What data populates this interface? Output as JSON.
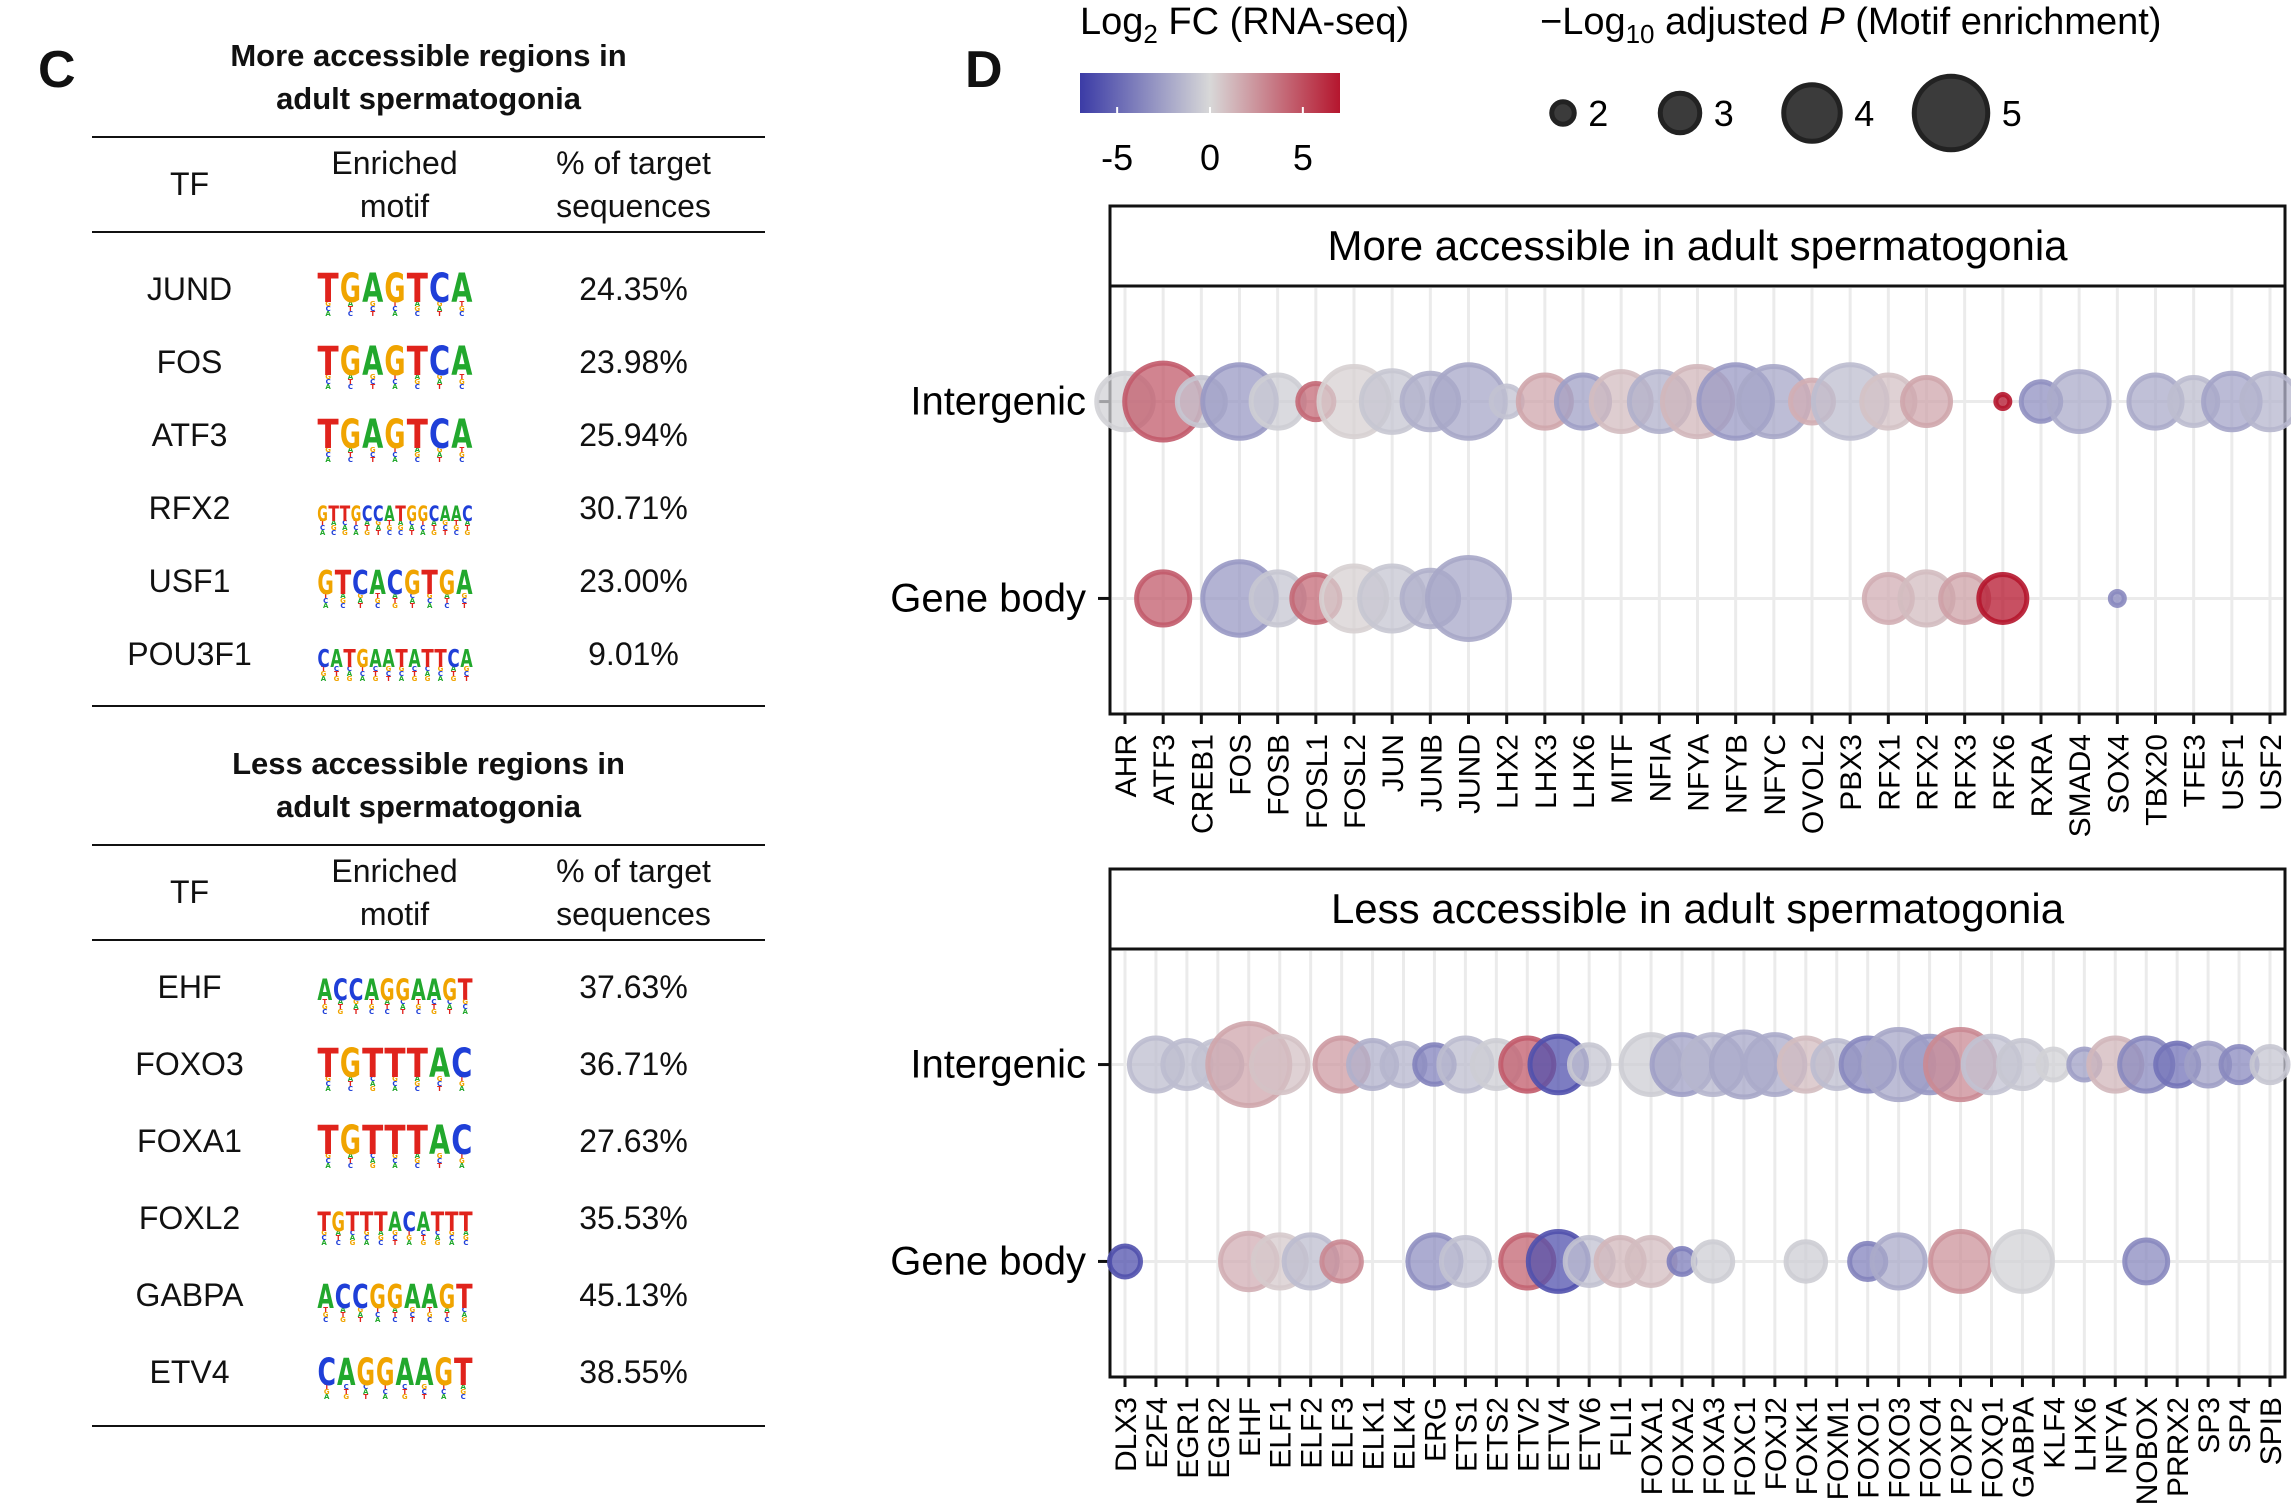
{
  "panel_c": {
    "letter": "C",
    "headers": {
      "tf": "TF",
      "motif_line1": "Enriched",
      "motif_line2": "motif",
      "pct_line1": "% of target",
      "pct_line2": "sequences"
    },
    "more": {
      "title_line1": "More accessible regions in",
      "title_line2": "adult spermatogonia",
      "rows": [
        {
          "tf": "JUND",
          "motif": "TGAGTCA",
          "pct": "24.35%"
        },
        {
          "tf": "FOS",
          "motif": "TGAGTCA",
          "pct": "23.98%"
        },
        {
          "tf": "ATF3",
          "motif": "TGAGTCA",
          "pct": "25.94%"
        },
        {
          "tf": "RFX2",
          "motif": "GTTGCCATGGCAAC",
          "pct": "30.71%"
        },
        {
          "tf": "USF1",
          "motif": "GTCACGTGA",
          "pct": "23.00%"
        },
        {
          "tf": "POU3F1",
          "motif": "CATGAATATTCA",
          "pct": "9.01%"
        }
      ]
    },
    "less": {
      "title_line1": "Less accessible regions in",
      "title_line2": "adult spermatogonia",
      "rows": [
        {
          "tf": "EHF",
          "motif": "ACCAGGAAGT",
          "pct": "37.63%"
        },
        {
          "tf": "FOXO3",
          "motif": "TGTTTAC",
          "pct": "36.71%"
        },
        {
          "tf": "FOXA1",
          "motif": "TGTTTAC",
          "pct": "27.63%"
        },
        {
          "tf": "FOXL2",
          "motif": "TGTTTACATTT",
          "pct": "35.53%"
        },
        {
          "tf": "GABPA",
          "motif": "ACCGGAAGT",
          "pct": "45.13%"
        },
        {
          "tf": "ETV4",
          "motif": "CAGGAAGT",
          "pct": "38.55%"
        }
      ]
    }
  },
  "panel_d": {
    "letter": "D",
    "colorbar": {
      "title_main": "Log",
      "title_sub": "2",
      "title_rest": " FC (RNA-seq)",
      "ticks": [
        -5,
        0,
        5
      ],
      "range": [
        -7,
        7
      ],
      "low_color": "#3b3ba6",
      "mid_color": "#d8d8d8",
      "high_color": "#b5162e"
    },
    "size_legend": {
      "title_prefix": "−Log",
      "title_sub": "10",
      "title_mid": " adjusted ",
      "title_italic": "P",
      "title_suffix": " (Motif enrichment)",
      "values": [
        2,
        3,
        4,
        5
      ]
    },
    "row_labels": [
      "Intergenic",
      "Gene body"
    ]
  },
  "chart_data": [
    {
      "type": "scatter",
      "title": "More accessible in adult spermatogonia",
      "categories": [
        "AHR",
        "ATF3",
        "CREB1",
        "FOS",
        "FOSB",
        "FOSL1",
        "FOSL2",
        "JUN",
        "JUNB",
        "JUND",
        "LHX2",
        "LHX3",
        "LHX6",
        "MITF",
        "NFIA",
        "NFYA",
        "NFYB",
        "NFYC",
        "OVOL2",
        "PBX3",
        "RFX1",
        "RFX2",
        "RFX3",
        "RFX6",
        "RXRA",
        "SMAD4",
        "SOX4",
        "TBX20",
        "TFE3",
        "USF1",
        "USF2"
      ],
      "rows": [
        "Intergenic",
        "Gene body"
      ],
      "points": [
        {
          "tf": "AHR",
          "row": "Intergenic",
          "log2fc": -0.3,
          "neglog10p": 4.0
        },
        {
          "tf": "ATF3",
          "row": "Intergenic",
          "log2fc": 4.5,
          "neglog10p": 5.2
        },
        {
          "tf": "CREB1",
          "row": "Intergenic",
          "log2fc": -0.8,
          "neglog10p": 3.5
        },
        {
          "tf": "FOS",
          "row": "Intergenic",
          "log2fc": -2.8,
          "neglog10p": 5.0
        },
        {
          "tf": "FOSB",
          "row": "Intergenic",
          "log2fc": -0.5,
          "neglog10p": 3.8
        },
        {
          "tf": "FOSL1",
          "row": "Intergenic",
          "log2fc": 4.0,
          "neglog10p": 2.8
        },
        {
          "tf": "FOSL2",
          "row": "Intergenic",
          "log2fc": 0.3,
          "neglog10p": 4.8
        },
        {
          "tf": "JUN",
          "row": "Intergenic",
          "log2fc": -0.8,
          "neglog10p": 4.3
        },
        {
          "tf": "JUNB",
          "row": "Intergenic",
          "log2fc": -1.8,
          "neglog10p": 4.0
        },
        {
          "tf": "JUND",
          "row": "Intergenic",
          "log2fc": -2.2,
          "neglog10p": 5.0
        },
        {
          "tf": "LHX2",
          "row": "Intergenic",
          "log2fc": -1.0,
          "neglog10p": 2.5
        },
        {
          "tf": "LHX3",
          "row": "Intergenic",
          "log2fc": 1.8,
          "neglog10p": 3.8
        },
        {
          "tf": "LHX6",
          "row": "Intergenic",
          "log2fc": -2.5,
          "neglog10p": 3.8
        },
        {
          "tf": "MITF",
          "row": "Intergenic",
          "log2fc": 1.0,
          "neglog10p": 4.2
        },
        {
          "tf": "NFIA",
          "row": "Intergenic",
          "log2fc": -1.8,
          "neglog10p": 4.2
        },
        {
          "tf": "NFYA",
          "row": "Intergenic",
          "log2fc": 1.2,
          "neglog10p": 4.8
        },
        {
          "tf": "NFYB",
          "row": "Intergenic",
          "log2fc": -2.8,
          "neglog10p": 5.0
        },
        {
          "tf": "NFYC",
          "row": "Intergenic",
          "log2fc": -2.2,
          "neglog10p": 4.8
        },
        {
          "tf": "OVOL2",
          "row": "Intergenic",
          "log2fc": 1.5,
          "neglog10p": 3.2
        },
        {
          "tf": "PBX3",
          "row": "Intergenic",
          "log2fc": -1.2,
          "neglog10p": 5.0
        },
        {
          "tf": "RFX1",
          "row": "Intergenic",
          "log2fc": 0.8,
          "neglog10p": 3.8
        },
        {
          "tf": "RFX2",
          "row": "Intergenic",
          "log2fc": 1.8,
          "neglog10p": 3.5
        },
        {
          "tf": "RFX6",
          "row": "Intergenic",
          "log2fc": 7.0,
          "neglog10p": 1.5
        },
        {
          "tf": "RXRA",
          "row": "Intergenic",
          "log2fc": -3.2,
          "neglog10p": 3.0
        },
        {
          "tf": "SMAD4",
          "row": "Intergenic",
          "log2fc": -2.0,
          "neglog10p": 4.2
        },
        {
          "tf": "TBX20",
          "row": "Intergenic",
          "log2fc": -2.0,
          "neglog10p": 3.8
        },
        {
          "tf": "TFE3",
          "row": "Intergenic",
          "log2fc": -1.2,
          "neglog10p": 3.5
        },
        {
          "tf": "USF1",
          "row": "Intergenic",
          "log2fc": -2.3,
          "neglog10p": 4.0
        },
        {
          "tf": "USF2",
          "row": "Intergenic",
          "log2fc": -1.5,
          "neglog10p": 4.0
        },
        {
          "tf": "ATF3",
          "row": "Gene body",
          "log2fc": 4.5,
          "neglog10p": 3.8
        },
        {
          "tf": "FOS",
          "row": "Gene body",
          "log2fc": -2.8,
          "neglog10p": 5.0
        },
        {
          "tf": "FOSB",
          "row": "Gene body",
          "log2fc": -0.8,
          "neglog10p": 3.8
        },
        {
          "tf": "FOSL1",
          "row": "Gene body",
          "log2fc": 4.0,
          "neglog10p": 3.5
        },
        {
          "tf": "FOSL2",
          "row": "Gene body",
          "log2fc": 0.3,
          "neglog10p": 4.5
        },
        {
          "tf": "JUN",
          "row": "Gene body",
          "log2fc": -0.8,
          "neglog10p": 4.5
        },
        {
          "tf": "JUNB",
          "row": "Gene body",
          "log2fc": -1.8,
          "neglog10p": 4.0
        },
        {
          "tf": "JUND",
          "row": "Gene body",
          "log2fc": -2.2,
          "neglog10p": 5.5
        },
        {
          "tf": "RFX1",
          "row": "Gene body",
          "log2fc": 1.5,
          "neglog10p": 3.5
        },
        {
          "tf": "RFX2",
          "row": "Gene body",
          "log2fc": 1.0,
          "neglog10p": 3.8
        },
        {
          "tf": "RFX3",
          "row": "Gene body",
          "log2fc": 2.0,
          "neglog10p": 3.5
        },
        {
          "tf": "RFX6",
          "row": "Gene body",
          "log2fc": 7.0,
          "neglog10p": 3.5
        },
        {
          "tf": "SOX4",
          "row": "Gene body",
          "log2fc": -3.5,
          "neglog10p": 1.5
        }
      ],
      "color_range": [
        -7,
        7
      ],
      "size_range": [
        1.5,
        5.5
      ]
    },
    {
      "type": "scatter",
      "title": "Less accessible in adult spermatogonia",
      "categories": [
        "DLX3",
        "E2F4",
        "EGR1",
        "EGR2",
        "EHF",
        "ELF1",
        "ELF2",
        "ELF3",
        "ELK1",
        "ELK4",
        "ERG",
        "ETS1",
        "ETS2",
        "ETV2",
        "ETV4",
        "ETV6",
        "FLI1",
        "FOXA1",
        "FOXA2",
        "FOXA3",
        "FOXC1",
        "FOXJ2",
        "FOXK1",
        "FOXM1",
        "FOXO1",
        "FOXO3",
        "FOXO4",
        "FOXP2",
        "FOXQ1",
        "GABPA",
        "KLF4",
        "LHX6",
        "NFYA",
        "NOBOX",
        "PRRX2",
        "SP3",
        "SP4",
        "SPIB"
      ],
      "rows": [
        "Intergenic",
        "Gene body"
      ],
      "points": [
        {
          "tf": "E2F4",
          "row": "Intergenic",
          "log2fc": -1.2,
          "neglog10p": 3.8
        },
        {
          "tf": "EGR1",
          "row": "Intergenic",
          "log2fc": -1.2,
          "neglog10p": 3.5
        },
        {
          "tf": "EGR2",
          "row": "Intergenic",
          "log2fc": -1.0,
          "neglog10p": 3.5
        },
        {
          "tf": "EHF",
          "row": "Intergenic",
          "log2fc": 1.8,
          "neglog10p": 5.5
        },
        {
          "tf": "ELF1",
          "row": "Intergenic",
          "log2fc": 0.8,
          "neglog10p": 4.0
        },
        {
          "tf": "ELF3",
          "row": "Intergenic",
          "log2fc": 2.2,
          "neglog10p": 3.8
        },
        {
          "tf": "ELK1",
          "row": "Intergenic",
          "log2fc": -1.8,
          "neglog10p": 3.5
        },
        {
          "tf": "ELK4",
          "row": "Intergenic",
          "log2fc": -1.5,
          "neglog10p": 3.2
        },
        {
          "tf": "ERG",
          "row": "Intergenic",
          "log2fc": -3.8,
          "neglog10p": 3.0
        },
        {
          "tf": "ETS1",
          "row": "Intergenic",
          "log2fc": -1.2,
          "neglog10p": 3.8
        },
        {
          "tf": "ETS2",
          "row": "Intergenic",
          "log2fc": -0.5,
          "neglog10p": 3.5
        },
        {
          "tf": "ETV2",
          "row": "Intergenic",
          "log2fc": 4.5,
          "neglog10p": 3.8
        },
        {
          "tf": "ETV4",
          "row": "Intergenic",
          "log2fc": -6.0,
          "neglog10p": 4.0
        },
        {
          "tf": "ETV6",
          "row": "Intergenic",
          "log2fc": -0.8,
          "neglog10p": 3.0
        },
        {
          "tf": "FOXA1",
          "row": "Intergenic",
          "log2fc": -0.5,
          "neglog10p": 4.2
        },
        {
          "tf": "FOXA2",
          "row": "Intergenic",
          "log2fc": -2.5,
          "neglog10p": 4.2
        },
        {
          "tf": "FOXA3",
          "row": "Intergenic",
          "log2fc": -1.5,
          "neglog10p": 4.2
        },
        {
          "tf": "FOXC1",
          "row": "Intergenic",
          "log2fc": -2.2,
          "neglog10p": 4.5
        },
        {
          "tf": "FOXJ2",
          "row": "Intergenic",
          "log2fc": -2.0,
          "neglog10p": 4.2
        },
        {
          "tf": "FOXK1",
          "row": "Intergenic",
          "log2fc": 1.0,
          "neglog10p": 3.8
        },
        {
          "tf": "FOXM1",
          "row": "Intergenic",
          "log2fc": -1.2,
          "neglog10p": 3.5
        },
        {
          "tf": "FOXO1",
          "row": "Intergenic",
          "log2fc": -3.5,
          "neglog10p": 3.8
        },
        {
          "tf": "FOXO3",
          "row": "Intergenic",
          "log2fc": -2.2,
          "neglog10p": 4.8
        },
        {
          "tf": "FOXO4",
          "row": "Intergenic",
          "log2fc": -2.8,
          "neglog10p": 4.0
        },
        {
          "tf": "FOXP2",
          "row": "Intergenic",
          "log2fc": 2.8,
          "neglog10p": 4.8
        },
        {
          "tf": "FOXQ1",
          "row": "Intergenic",
          "log2fc": -1.0,
          "neglog10p": 4.0
        },
        {
          "tf": "GABPA",
          "row": "Intergenic",
          "log2fc": -0.8,
          "neglog10p": 3.5
        },
        {
          "tf": "KLF4",
          "row": "Intergenic",
          "log2fc": -0.3,
          "neglog10p": 2.5
        },
        {
          "tf": "LHX6",
          "row": "Intergenic",
          "log2fc": -2.5,
          "neglog10p": 2.5
        },
        {
          "tf": "NFYA",
          "row": "Intergenic",
          "log2fc": 1.2,
          "neglog10p": 3.8
        },
        {
          "tf": "NOBOX",
          "row": "Intergenic",
          "log2fc": -3.5,
          "neglog10p": 3.8
        },
        {
          "tf": "PRRX2",
          "row": "Intergenic",
          "log2fc": -4.5,
          "neglog10p": 3.2
        },
        {
          "tf": "SP3",
          "row": "Intergenic",
          "log2fc": -2.5,
          "neglog10p": 3.2
        },
        {
          "tf": "SP4",
          "row": "Intergenic",
          "log2fc": -3.5,
          "neglog10p": 2.8
        },
        {
          "tf": "SPIB",
          "row": "Intergenic",
          "log2fc": -0.8,
          "neglog10p": 2.8
        },
        {
          "tf": "DLX3",
          "row": "Gene body",
          "log2fc": -6.0,
          "neglog10p": 2.5
        },
        {
          "tf": "EHF",
          "row": "Gene body",
          "log2fc": 1.5,
          "neglog10p": 4.0
        },
        {
          "tf": "ELF1",
          "row": "Gene body",
          "log2fc": 0.5,
          "neglog10p": 3.8
        },
        {
          "tf": "ELF2",
          "row": "Gene body",
          "log2fc": -1.2,
          "neglog10p": 3.8
        },
        {
          "tf": "ELF3",
          "row": "Gene body",
          "log2fc": 2.8,
          "neglog10p": 3.0
        },
        {
          "tf": "ERG",
          "row": "Gene body",
          "log2fc": -3.2,
          "neglog10p": 3.8
        },
        {
          "tf": "ETS1",
          "row": "Gene body",
          "log2fc": -1.0,
          "neglog10p": 3.5
        },
        {
          "tf": "ETV2",
          "row": "Gene body",
          "log2fc": 4.2,
          "neglog10p": 3.8
        },
        {
          "tf": "ETV4",
          "row": "Gene body",
          "log2fc": -6.0,
          "neglog10p": 4.2
        },
        {
          "tf": "ETV6",
          "row": "Gene body",
          "log2fc": -1.0,
          "neglog10p": 3.5
        },
        {
          "tf": "FLI1",
          "row": "Gene body",
          "log2fc": 1.2,
          "neglog10p": 3.5
        },
        {
          "tf": "FOXA1",
          "row": "Gene body",
          "log2fc": 1.0,
          "neglog10p": 3.5
        },
        {
          "tf": "FOXA2",
          "row": "Gene body",
          "log2fc": -4.0,
          "neglog10p": 2.2
        },
        {
          "tf": "FOXA3",
          "row": "Gene body",
          "log2fc": -0.5,
          "neglog10p": 3.0
        },
        {
          "tf": "FOXK1",
          "row": "Gene body",
          "log2fc": -0.5,
          "neglog10p": 3.0
        },
        {
          "tf": "FOXO1",
          "row": "Gene body",
          "log2fc": -3.8,
          "neglog10p": 2.8
        },
        {
          "tf": "FOXO3",
          "row": "Gene body",
          "log2fc": -2.0,
          "neglog10p": 3.8
        },
        {
          "tf": "FOXP2",
          "row": "Gene body",
          "log2fc": 2.5,
          "neglog10p": 4.2
        },
        {
          "tf": "GABPA",
          "row": "Gene body",
          "log2fc": -0.3,
          "neglog10p": 4.2
        },
        {
          "tf": "NOBOX",
          "row": "Gene body",
          "log2fc": -3.5,
          "neglog10p": 3.2
        }
      ],
      "color_range": [
        -7,
        7
      ],
      "size_range": [
        1.5,
        5.5
      ]
    }
  ]
}
